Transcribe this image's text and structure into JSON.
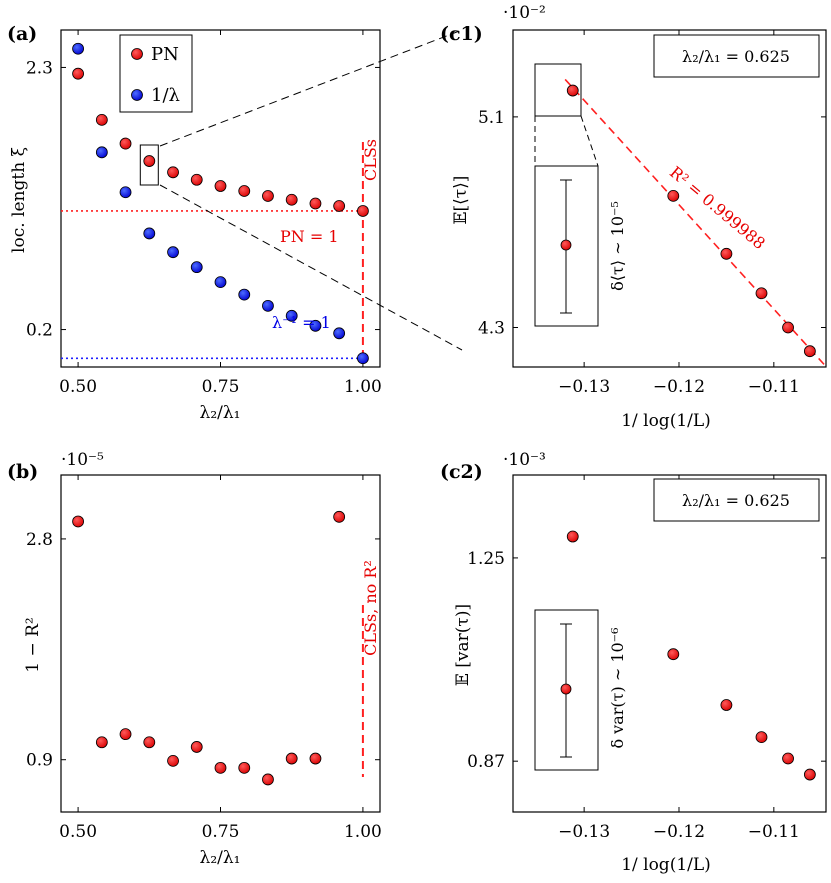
{
  "colors": {
    "red": "#e60000",
    "blue": "#0000e6",
    "redline": "#ff2020",
    "blueline": "#2020ff"
  },
  "chart_data": [
    {
      "panel": "(a)",
      "type": "scatter",
      "xlabel": "λ₂/λ₁",
      "ylabel": "loc. length ξ",
      "xticks": [
        "0.50",
        "0.75",
        "1.00"
      ],
      "yticks": [
        "0.2",
        "2.3"
      ],
      "xlim": [
        0.47,
        1.03
      ],
      "ylim": [
        -0.1,
        2.6
      ],
      "legend": {
        "placement": "top-left",
        "entries": [
          "PN",
          "1/λ"
        ]
      },
      "series": [
        {
          "name": "PN",
          "color": "red",
          "x": [
            0.5,
            0.5417,
            0.5833,
            0.625,
            0.6667,
            0.7083,
            0.75,
            0.7917,
            0.8333,
            0.875,
            0.9167,
            0.9583,
            1.0
          ],
          "y": [
            2.25,
            1.88,
            1.69,
            1.55,
            1.46,
            1.4,
            1.35,
            1.31,
            1.27,
            1.24,
            1.21,
            1.19,
            1.15
          ]
        },
        {
          "name": "1/λ",
          "color": "blue",
          "x": [
            0.5,
            0.5417,
            0.5833,
            0.625,
            0.6667,
            0.7083,
            0.75,
            0.7917,
            0.8333,
            0.875,
            0.9167,
            0.9583,
            1.0
          ],
          "y": [
            2.45,
            1.62,
            1.3,
            0.97,
            0.82,
            0.7,
            0.58,
            0.48,
            0.39,
            0.31,
            0.23,
            0.17,
            -0.03
          ]
        }
      ],
      "reference_lines": [
        {
          "label": "PN = 1",
          "y": 1.15,
          "style": "dotted",
          "color": "red"
        },
        {
          "label": "λ⁻¹ = 1",
          "y": -0.03,
          "style": "dotted",
          "color": "blue"
        }
      ],
      "vertical_marker": {
        "label": "CLSs",
        "x": 1.0,
        "color": "red"
      },
      "zoom_box_x": 0.625
    },
    {
      "panel": "(c1)",
      "type": "scatter",
      "xlabel": "1/ log(1/L)",
      "ylabel": "𝔼[⟨τ⟩]",
      "multiplier": "·10⁻²",
      "xticks": [
        "−0.13",
        "−0.12",
        "−0.11"
      ],
      "yticks": [
        "4.3",
        "5.1"
      ],
      "xlim": [
        -0.1375,
        -0.1045
      ],
      "ylim": [
        4.15,
        5.43
      ],
      "box_label": "λ₂/λ₁ = 0.625",
      "fit_label": "R² = 0.999988",
      "inset_label": "δ⟨τ⟩ ∼ 10⁻⁵",
      "x": [
        -0.1312,
        -0.1206,
        -0.115,
        -0.1113,
        -0.1085,
        -0.1062
      ],
      "y": [
        5.2,
        4.8,
        4.58,
        4.43,
        4.3,
        4.21
      ]
    },
    {
      "panel": "(b)",
      "type": "scatter",
      "xlabel": "λ₂/λ₁",
      "ylabel": "1 − R²",
      "multiplier": "·10⁻⁵",
      "xticks": [
        "0.50",
        "0.75",
        "1.00"
      ],
      "yticks": [
        "0.9",
        "2.8"
      ],
      "xlim": [
        0.47,
        1.03
      ],
      "ylim": [
        0.45,
        3.35
      ],
      "vertical_marker": {
        "label": "CLSs, no R²",
        "x": 1.0,
        "color": "red"
      },
      "x": [
        0.5,
        0.5417,
        0.5833,
        0.625,
        0.6667,
        0.7083,
        0.75,
        0.7917,
        0.8333,
        0.875,
        0.9167,
        0.9583
      ],
      "y": [
        2.95,
        1.05,
        1.12,
        1.05,
        0.89,
        1.01,
        0.83,
        0.83,
        0.73,
        0.91,
        0.91,
        2.99
      ]
    },
    {
      "panel": "(c2)",
      "type": "scatter",
      "xlabel": "1/ log(1/L)",
      "ylabel": "𝔼 [var(τ)]",
      "multiplier": "·10⁻³",
      "xticks": [
        "−0.13",
        "−0.12",
        "−0.11"
      ],
      "yticks": [
        "0.87",
        "1.25"
      ],
      "xlim": [
        -0.1375,
        -0.1045
      ],
      "ylim": [
        0.775,
        1.405
      ],
      "box_label": "λ₂/λ₁ = 0.625",
      "inset_label": "δ var(τ) ∼ 10⁻⁶",
      "x": [
        -0.1312,
        -0.1206,
        -0.115,
        -0.1113,
        -0.1085,
        -0.1062
      ],
      "y": [
        1.29,
        1.07,
        0.975,
        0.915,
        0.875,
        0.845
      ]
    }
  ]
}
